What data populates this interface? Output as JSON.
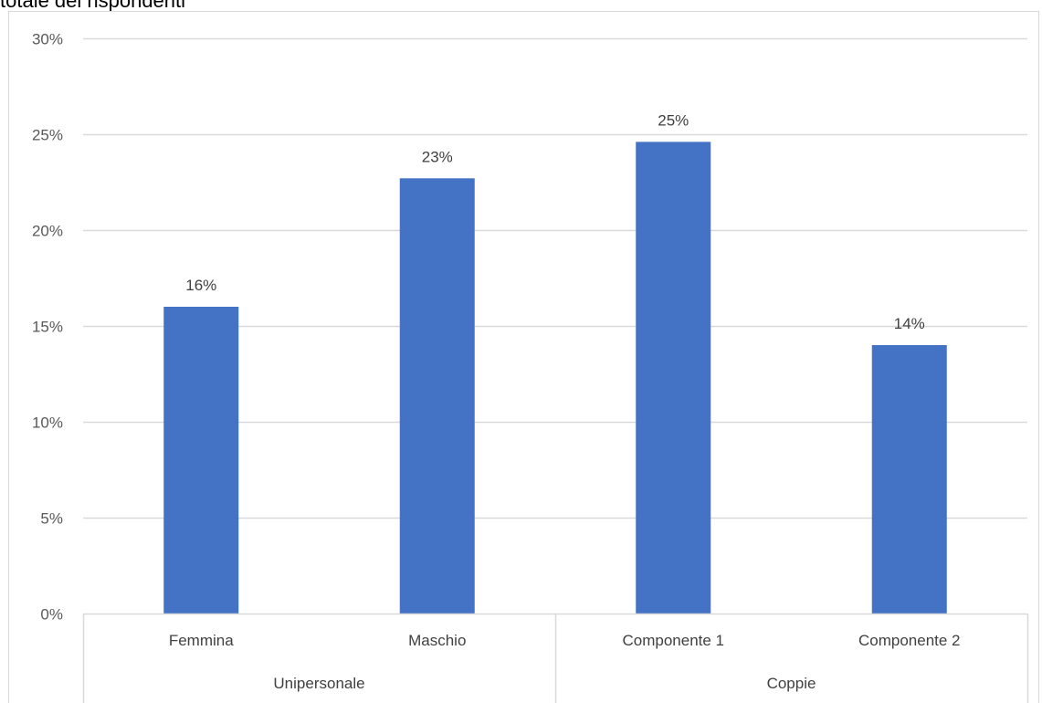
{
  "caption": "totale dei rispondenti",
  "chart_data": {
    "type": "bar",
    "title": "",
    "xlabel": "",
    "ylabel": "",
    "categories": [
      "Femmina",
      "Maschio",
      "Componente 1",
      "Componente 2"
    ],
    "groups": [
      {
        "label": "Unipersonale",
        "categories": [
          "Femmina",
          "Maschio"
        ]
      },
      {
        "label": "Coppie",
        "categories": [
          "Componente 1",
          "Componente 2"
        ]
      }
    ],
    "values": [
      16,
      22.7,
      24.6,
      14
    ],
    "data_labels": [
      "16%",
      "23%",
      "25%",
      "14%"
    ],
    "ylim": [
      0,
      30
    ],
    "yticks": [
      0,
      5,
      10,
      15,
      20,
      25,
      30
    ],
    "ytick_labels": [
      "0%",
      "5%",
      "10%",
      "15%",
      "20%",
      "25%",
      "30%"
    ],
    "grid": true,
    "bar_color": "#4472C4",
    "grid_color": "#D9D9D9",
    "legend": "none"
  }
}
